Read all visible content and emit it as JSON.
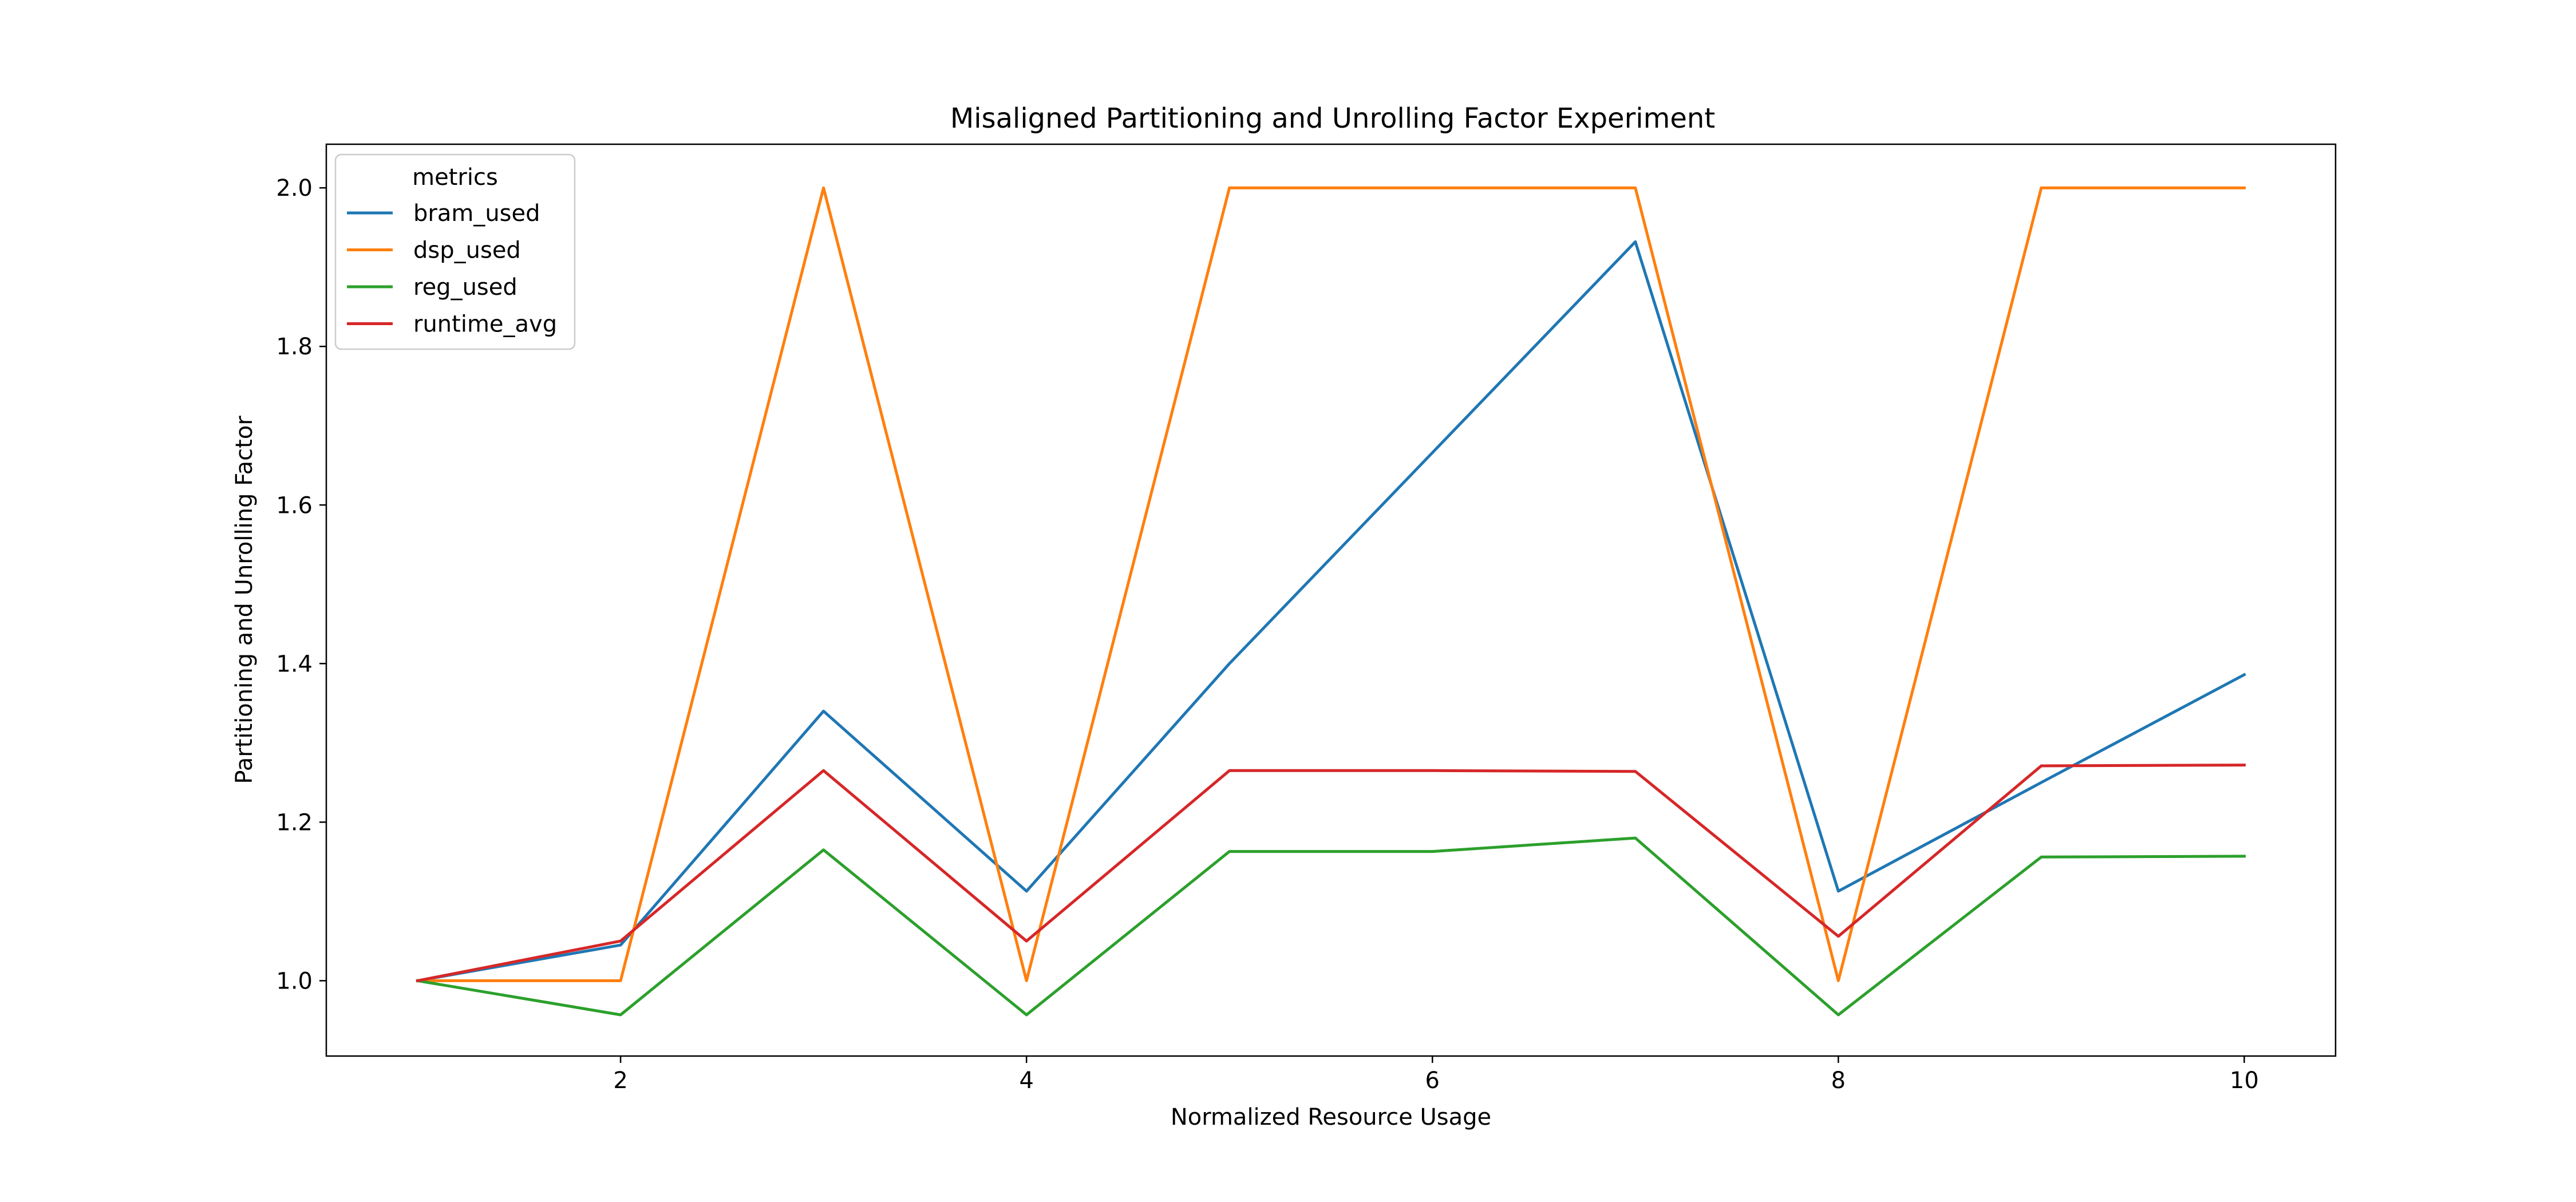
{
  "chart_data": {
    "type": "line",
    "title": "Misaligned Partitioning and Unrolling Factor Experiment",
    "xlabel": "Normalized Resource Usage",
    "ylabel": "Partitioning and Unrolling Factor",
    "xlim": [
      0.55,
      10.45
    ],
    "ylim": [
      0.905,
      2.055
    ],
    "xticks": [
      2,
      4,
      6,
      8,
      10
    ],
    "yticks": [
      1.0,
      1.2,
      1.4,
      1.6,
      1.8,
      2.0
    ],
    "xtick_labels": [
      "2",
      "4",
      "6",
      "8",
      "10"
    ],
    "ytick_labels": [
      "1.0",
      "1.2",
      "1.4",
      "1.6",
      "1.8",
      "2.0"
    ],
    "grid": false,
    "legend": {
      "title": "metrics",
      "position": "top-left"
    },
    "x": [
      1,
      2,
      3,
      4,
      5,
      6,
      7,
      8,
      9,
      10
    ],
    "series": [
      {
        "name": "bram_used",
        "color": "#1f77b4",
        "values": [
          1.0,
          1.045,
          1.34,
          1.113,
          1.4,
          1.666,
          1.932,
          1.113,
          1.25,
          1.386
        ]
      },
      {
        "name": "dsp_used",
        "color": "#ff7f0e",
        "values": [
          1.0,
          1.0,
          2.0,
          1.0,
          2.0,
          2.0,
          2.0,
          1.0,
          2.0,
          2.0
        ]
      },
      {
        "name": "reg_used",
        "color": "#2ca02c",
        "values": [
          1.0,
          0.957,
          1.165,
          0.957,
          1.163,
          1.163,
          1.18,
          0.957,
          1.156,
          1.157
        ]
      },
      {
        "name": "runtime_avg",
        "color": "#d62728",
        "values": [
          1.0,
          1.05,
          1.265,
          1.05,
          1.265,
          1.265,
          1.264,
          1.056,
          1.271,
          1.272
        ]
      }
    ]
  }
}
